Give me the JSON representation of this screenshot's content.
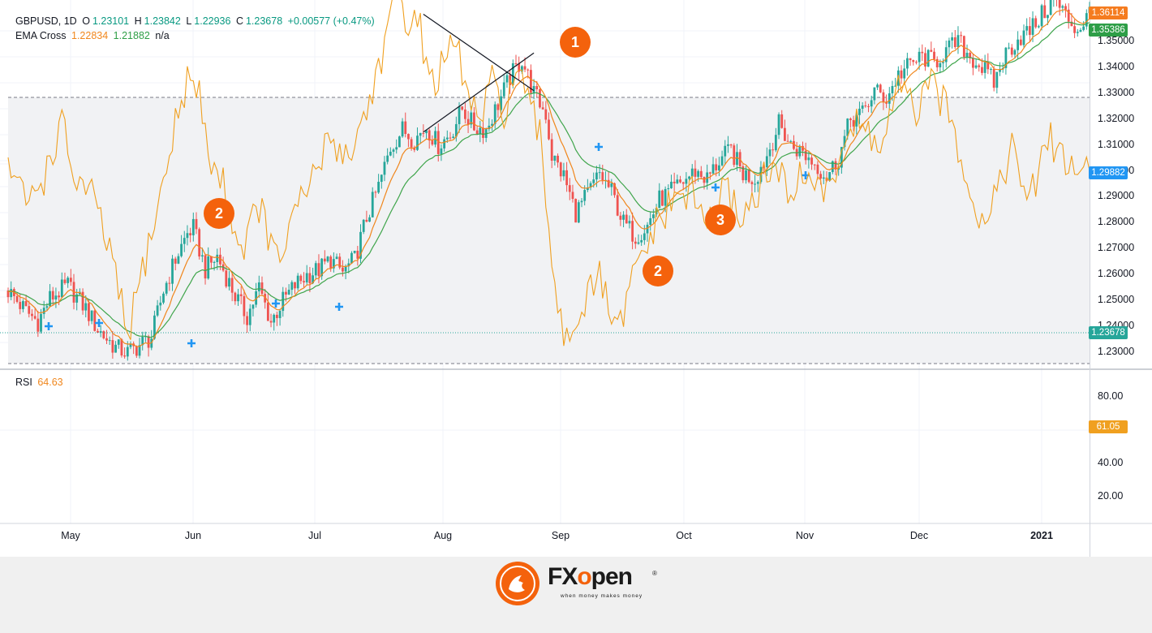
{
  "header": {
    "symbol": "GBPUSD, 1D",
    "o_label": "O",
    "o_val": "1.23101",
    "h_label": "H",
    "h_val": "1.23842",
    "l_label": "L",
    "l_val": "1.22936",
    "c_label": "C",
    "c_val": "1.23678",
    "change": "+0.00577 (+0.47%)",
    "ema_label": "EMA Cross",
    "ema_fast": "1.22834",
    "ema_slow": "1.21882",
    "ema_na": "n/a"
  },
  "rsi": {
    "label": "RSI",
    "value": "64.63",
    "tag": "61.05"
  },
  "price_tags": {
    "red": "1.36114",
    "green": "1.35386",
    "blue": "1.29882",
    "close": "1.23678"
  },
  "price_axis": [
    "1.35000",
    "1.34000",
    "1.33000",
    "1.32000",
    "1.31000",
    "1.30000",
    "1.29000",
    "1.28000",
    "1.27000",
    "1.26000",
    "1.25000",
    "1.24000",
    "1.23000"
  ],
  "rsi_axis": [
    "80.00",
    "40.00",
    "20.00"
  ],
  "months": [
    "May",
    "Jun",
    "Jul",
    "Aug",
    "Sep",
    "Oct",
    "Nov",
    "Dec",
    "2021"
  ],
  "badges": [
    "1",
    "2",
    "2",
    "3"
  ],
  "brand": {
    "name_fx": "FX",
    "name_o": "o",
    "name_rest": "pen",
    "reg": "®",
    "tagline": "when money makes money"
  },
  "colors": {
    "up": "#26a69a",
    "down": "#ef5350",
    "ema_fast": "#f0861c",
    "ema_slow": "#3fa54b",
    "rsi": "#f0a020",
    "accent": "#f4620c",
    "cross": "#2196f3"
  },
  "chart_data": {
    "type": "candlestick",
    "symbol": "GBPUSD",
    "timeframe": "1D",
    "ylim": [
      1.22,
      1.365
    ],
    "rsi_range": [
      30,
      70
    ],
    "rsi_ylim": [
      10,
      100
    ],
    "x_ticks": [
      "May",
      "Jun",
      "Jul",
      "Aug",
      "Sep",
      "Oct",
      "Nov",
      "Dec",
      "2021"
    ],
    "close_waypoints": [
      [
        0,
        1.25
      ],
      [
        6,
        1.242
      ],
      [
        10,
        1.238
      ],
      [
        14,
        1.247
      ],
      [
        20,
        1.252
      ],
      [
        26,
        1.243
      ],
      [
        30,
        1.235
      ],
      [
        36,
        1.228
      ],
      [
        40,
        1.226
      ],
      [
        44,
        1.229
      ],
      [
        48,
        1.232
      ],
      [
        52,
        1.25
      ],
      [
        56,
        1.262
      ],
      [
        60,
        1.272
      ],
      [
        62,
        1.274
      ],
      [
        66,
        1.258
      ],
      [
        70,
        1.263
      ],
      [
        76,
        1.248
      ],
      [
        80,
        1.24
      ],
      [
        84,
        1.251
      ],
      [
        88,
        1.238
      ],
      [
        92,
        1.246
      ],
      [
        96,
        1.252
      ],
      [
        100,
        1.256
      ],
      [
        104,
        1.258
      ],
      [
        108,
        1.262
      ],
      [
        112,
        1.257
      ],
      [
        116,
        1.262
      ],
      [
        120,
        1.278
      ],
      [
        124,
        1.29
      ],
      [
        128,
        1.305
      ],
      [
        132,
        1.312
      ],
      [
        136,
        1.308
      ],
      [
        140,
        1.313
      ],
      [
        144,
        1.306
      ],
      [
        148,
        1.31
      ],
      [
        152,
        1.32
      ],
      [
        156,
        1.313
      ],
      [
        160,
        1.312
      ],
      [
        164,
        1.322
      ],
      [
        168,
        1.332
      ],
      [
        172,
        1.339
      ],
      [
        176,
        1.326
      ],
      [
        180,
        1.318
      ],
      [
        182,
        1.302
      ],
      [
        186,
        1.294
      ],
      [
        190,
        1.28
      ],
      [
        194,
        1.287
      ],
      [
        198,
        1.295
      ],
      [
        202,
        1.288
      ],
      [
        206,
        1.276
      ],
      [
        210,
        1.271
      ],
      [
        214,
        1.275
      ],
      [
        218,
        1.285
      ],
      [
        222,
        1.288
      ],
      [
        226,
        1.292
      ],
      [
        230,
        1.296
      ],
      [
        234,
        1.293
      ],
      [
        238,
        1.3
      ],
      [
        242,
        1.304
      ],
      [
        246,
        1.295
      ],
      [
        250,
        1.293
      ],
      [
        254,
        1.302
      ],
      [
        258,
        1.314
      ],
      [
        262,
        1.306
      ],
      [
        266,
        1.303
      ],
      [
        270,
        1.299
      ],
      [
        274,
        1.294
      ],
      [
        278,
        1.301
      ],
      [
        282,
        1.316
      ],
      [
        286,
        1.318
      ],
      [
        290,
        1.327
      ],
      [
        294,
        1.324
      ],
      [
        298,
        1.333
      ],
      [
        302,
        1.337
      ],
      [
        306,
        1.34
      ],
      [
        310,
        1.338
      ],
      [
        314,
        1.342
      ],
      [
        318,
        1.346
      ],
      [
        322,
        1.34
      ],
      [
        326,
        1.336
      ],
      [
        330,
        1.33
      ],
      [
        334,
        1.341
      ],
      [
        338,
        1.347
      ],
      [
        342,
        1.35
      ],
      [
        346,
        1.356
      ],
      [
        350,
        1.362
      ],
      [
        354,
        1.356
      ],
      [
        358,
        1.35
      ],
      [
        362,
        1.357
      ]
    ],
    "rsi_waypoints": [
      [
        0,
        60
      ],
      [
        6,
        54
      ],
      [
        12,
        58
      ],
      [
        18,
        66
      ],
      [
        22,
        58
      ],
      [
        28,
        55
      ],
      [
        34,
        47
      ],
      [
        40,
        34
      ],
      [
        46,
        46
      ],
      [
        52,
        57
      ],
      [
        56,
        66
      ],
      [
        60,
        73
      ],
      [
        64,
        70
      ],
      [
        68,
        60
      ],
      [
        72,
        57
      ],
      [
        78,
        47
      ],
      [
        84,
        54
      ],
      [
        90,
        45
      ],
      [
        96,
        52
      ],
      [
        102,
        58
      ],
      [
        108,
        64
      ],
      [
        114,
        61
      ],
      [
        120,
        68
      ],
      [
        126,
        78
      ],
      [
        130,
        85
      ],
      [
        134,
        82
      ],
      [
        138,
        80
      ],
      [
        142,
        72
      ],
      [
        146,
        75
      ],
      [
        150,
        78
      ],
      [
        154,
        70
      ],
      [
        158,
        66
      ],
      [
        162,
        72
      ],
      [
        166,
        68
      ],
      [
        170,
        74
      ],
      [
        174,
        69
      ],
      [
        178,
        64
      ],
      [
        182,
        46
      ],
      [
        186,
        34
      ],
      [
        192,
        38
      ],
      [
        198,
        43
      ],
      [
        204,
        34
      ],
      [
        210,
        44
      ],
      [
        216,
        50
      ],
      [
        222,
        54
      ],
      [
        228,
        56
      ],
      [
        234,
        51
      ],
      [
        240,
        56
      ],
      [
        246,
        52
      ],
      [
        252,
        57
      ],
      [
        256,
        59
      ],
      [
        262,
        56
      ],
      [
        268,
        59
      ],
      [
        274,
        55
      ],
      [
        280,
        64
      ],
      [
        286,
        66
      ],
      [
        292,
        62
      ],
      [
        298,
        71
      ],
      [
        304,
        68
      ],
      [
        310,
        72
      ],
      [
        316,
        66
      ],
      [
        320,
        60
      ],
      [
        326,
        51
      ],
      [
        332,
        58
      ],
      [
        336,
        62
      ],
      [
        342,
        54
      ],
      [
        348,
        64
      ],
      [
        352,
        62
      ],
      [
        358,
        58
      ],
      [
        362,
        61
      ]
    ],
    "trendline_price": [
      [
        139,
        1.311
      ],
      [
        176,
        1.3415
      ]
    ],
    "trendline_rsi": [
      [
        139,
        82.5
      ],
      [
        176,
        71
      ]
    ],
    "annotations": [
      "1",
      "2",
      "2",
      "3"
    ]
  }
}
